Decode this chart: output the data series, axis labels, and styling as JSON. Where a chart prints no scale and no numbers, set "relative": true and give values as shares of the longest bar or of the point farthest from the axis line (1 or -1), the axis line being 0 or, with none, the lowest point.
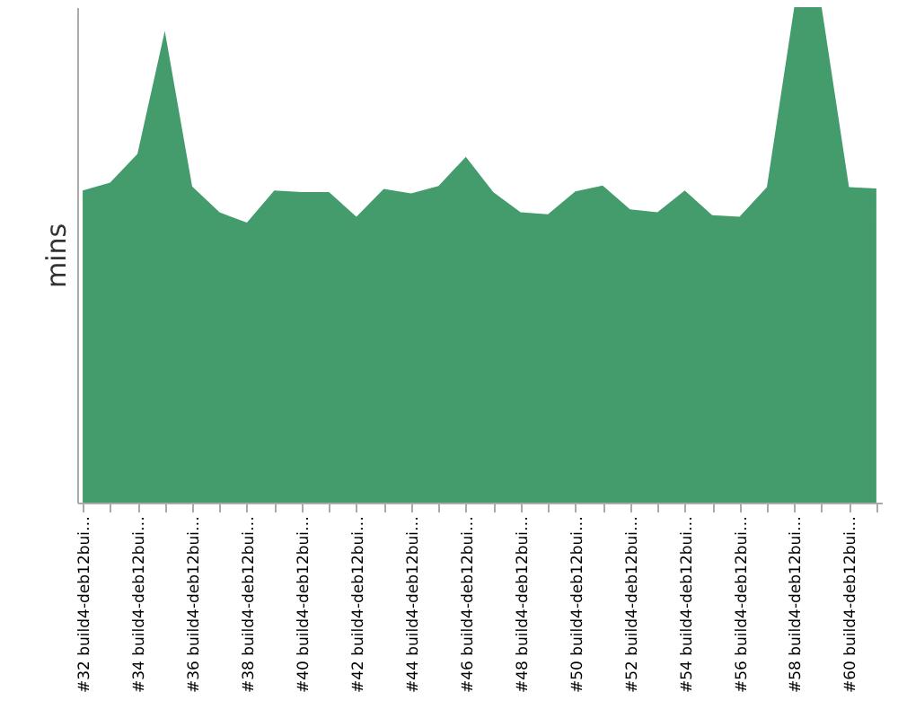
{
  "chart_data": {
    "type": "area",
    "relative": true,
    "ylabel": "mins",
    "grid": false,
    "categories": [
      "#32 build4-deb12bui…",
      null,
      "#34 build4-deb12bui…",
      null,
      "#36 build4-deb12bui…",
      null,
      "#38 build4-deb12bui…",
      null,
      "#40 build4-deb12bui…",
      null,
      "#42 build4-deb12bui…",
      null,
      "#44 build4-deb12bui…",
      null,
      "#46 build4-deb12bui…",
      null,
      "#48 build4-deb12bui…",
      null,
      "#50 build4-deb12bui…",
      null,
      "#52 build4-deb12bui…",
      null,
      "#54 build4-deb12bui…",
      null,
      "#56 build4-deb12bui…",
      null,
      "#58 build4-deb12bui…",
      null,
      "#60 build4-deb12bui…",
      null
    ],
    "series": [
      {
        "color": "#449c6c",
        "values": [
          0.63,
          0.646,
          0.704,
          0.952,
          0.638,
          0.586,
          0.565,
          0.63,
          0.627,
          0.627,
          0.577,
          0.633,
          0.624,
          0.639,
          0.698,
          0.627,
          0.586,
          0.582,
          0.628,
          0.64,
          0.592,
          0.586,
          0.63,
          0.58,
          0.577,
          0.637,
          1,
          1,
          0.637,
          0.634
        ]
      }
    ]
  }
}
